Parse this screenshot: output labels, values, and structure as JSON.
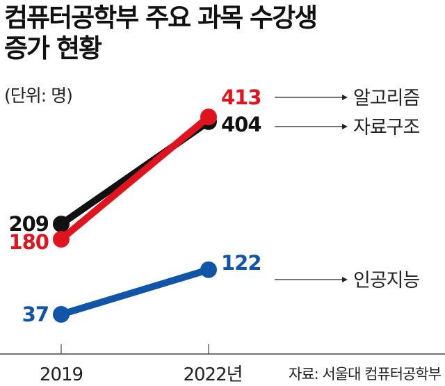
{
  "title_line1": "컴퓨터공학부 주요 과목 수강생",
  "title_line2": "증가 현황",
  "unit": "(단위: 명)",
  "source": "자료: 서울대 컴퓨터공학부",
  "chart_data": {
    "type": "line",
    "categories": [
      "2019",
      "2022년"
    ],
    "series": [
      {
        "name": "자료구조",
        "values": [
          209,
          404
        ],
        "color": "#111111"
      },
      {
        "name": "알고리즘",
        "values": [
          180,
          413
        ],
        "color": "#e0141e"
      },
      {
        "name": "인공지능",
        "values": [
          37,
          122
        ],
        "color": "#1155a8"
      }
    ],
    "grid": false,
    "legend": "right, arrow labels"
  }
}
